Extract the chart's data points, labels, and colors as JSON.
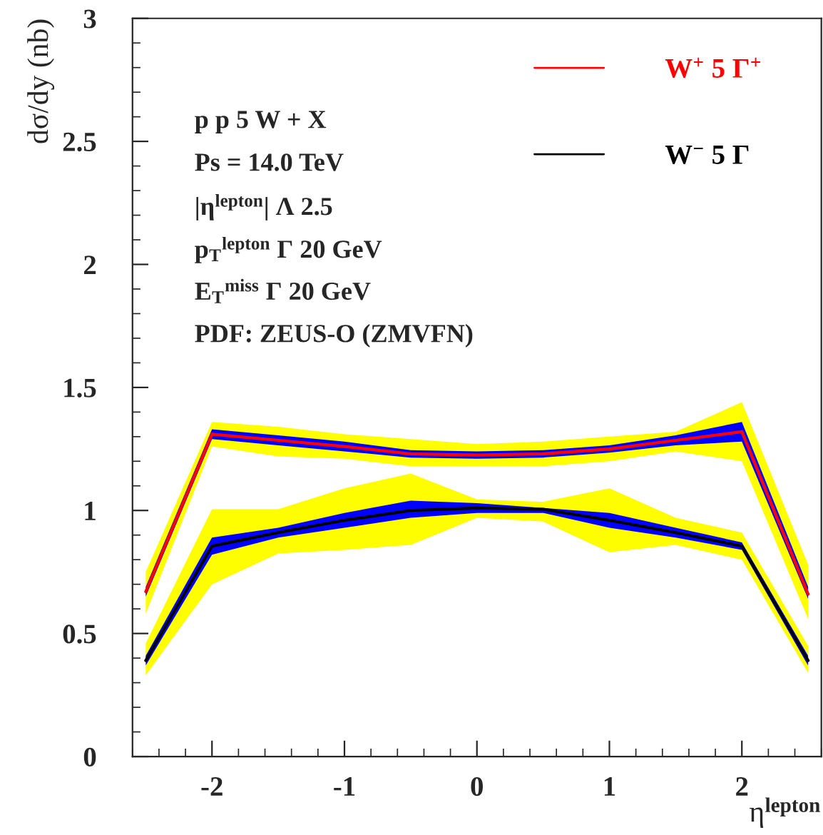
{
  "chart_data": {
    "type": "line",
    "xlabel": "η$^{lepton}$",
    "ylabel": "dσ/dy (nb)",
    "x": [
      -2.5,
      -2,
      -1.5,
      -1,
      -0.5,
      0,
      0.5,
      1,
      1.5,
      2,
      2.5
    ],
    "xlim": [
      -2.6,
      2.6
    ],
    "xticks": [
      -2,
      -1,
      0,
      1,
      2
    ],
    "ylim": [
      0,
      3
    ],
    "yticks": [
      0,
      0.5,
      1,
      1.5,
      2,
      2.5,
      3
    ],
    "grid": false,
    "legend": "top right",
    "marker": "none",
    "line_style": "solid",
    "annotations": [
      "p p 5 W + X",
      "Ps = 14.0 TeV",
      "|η$^{lepton}$| Λ 2.5",
      "p$_{T}$$^{lepton}$ Γ 20 GeV",
      "E$_{T}$$^{miss}$ Γ 20 GeV",
      "PDF: ZEUS-O (ZMVFN)"
    ],
    "series": [
      {
        "color": "#ffff00",
        "values": [
          null,
          null,
          null,
          null,
          null,
          null,
          null,
          null,
          null,
          null,
          null
        ],
        "lower": [
          0.58,
          1.26,
          1.22,
          1.21,
          1.18,
          1.18,
          1.18,
          1.2,
          1.24,
          1.2,
          0.56
        ],
        "upper": [
          0.75,
          1.36,
          1.34,
          1.31,
          1.29,
          1.27,
          1.28,
          1.3,
          1.32,
          1.44,
          0.78
        ]
      },
      {
        "color": "#0000ff",
        "values": [
          null,
          null,
          null,
          null,
          null,
          null,
          null,
          null,
          null,
          null,
          null
        ],
        "lower": [
          0.65,
          1.29,
          1.265,
          1.24,
          1.215,
          1.21,
          1.215,
          1.235,
          1.265,
          1.28,
          0.64
        ],
        "upper": [
          0.69,
          1.33,
          1.305,
          1.28,
          1.245,
          1.24,
          1.245,
          1.265,
          1.305,
          1.36,
          0.69
        ]
      },
      {
        "name": "W$^{+}$ 5 Γ$^{+}$",
        "color": "#ff0000",
        "values": [
          0.67,
          1.31,
          1.285,
          1.26,
          1.23,
          1.225,
          1.23,
          1.25,
          1.285,
          1.32,
          0.66
        ]
      },
      {
        "color": "#fefe00",
        "values": [
          null,
          null,
          null,
          null,
          null,
          null,
          null,
          null,
          null,
          null,
          null
        ],
        "lower": [
          0.33,
          0.7,
          0.825,
          0.84,
          0.86,
          0.97,
          0.955,
          0.83,
          0.86,
          0.8,
          0.34
        ],
        "upper": [
          0.46,
          1.005,
          1.005,
          1.09,
          1.15,
          1.045,
          1.035,
          1.09,
          0.97,
          0.91,
          0.45
        ]
      },
      {
        "color": "#0000fe",
        "values": [
          null,
          null,
          null,
          null,
          null,
          null,
          null,
          null,
          null,
          null,
          null
        ],
        "lower": [
          0.37,
          0.82,
          0.89,
          0.93,
          0.97,
          0.99,
          0.99,
          0.93,
          0.89,
          0.84,
          0.37
        ],
        "upper": [
          0.41,
          0.89,
          0.93,
          0.99,
          1.04,
          1.03,
          1.01,
          0.99,
          0.93,
          0.87,
          0.41
        ]
      },
      {
        "name": "W$^{−}$ 5 Γ",
        "color": "#000000",
        "values": [
          0.39,
          0.855,
          0.91,
          0.96,
          1.0,
          1.01,
          1.005,
          0.96,
          0.91,
          0.855,
          0.39
        ]
      }
    ]
  }
}
